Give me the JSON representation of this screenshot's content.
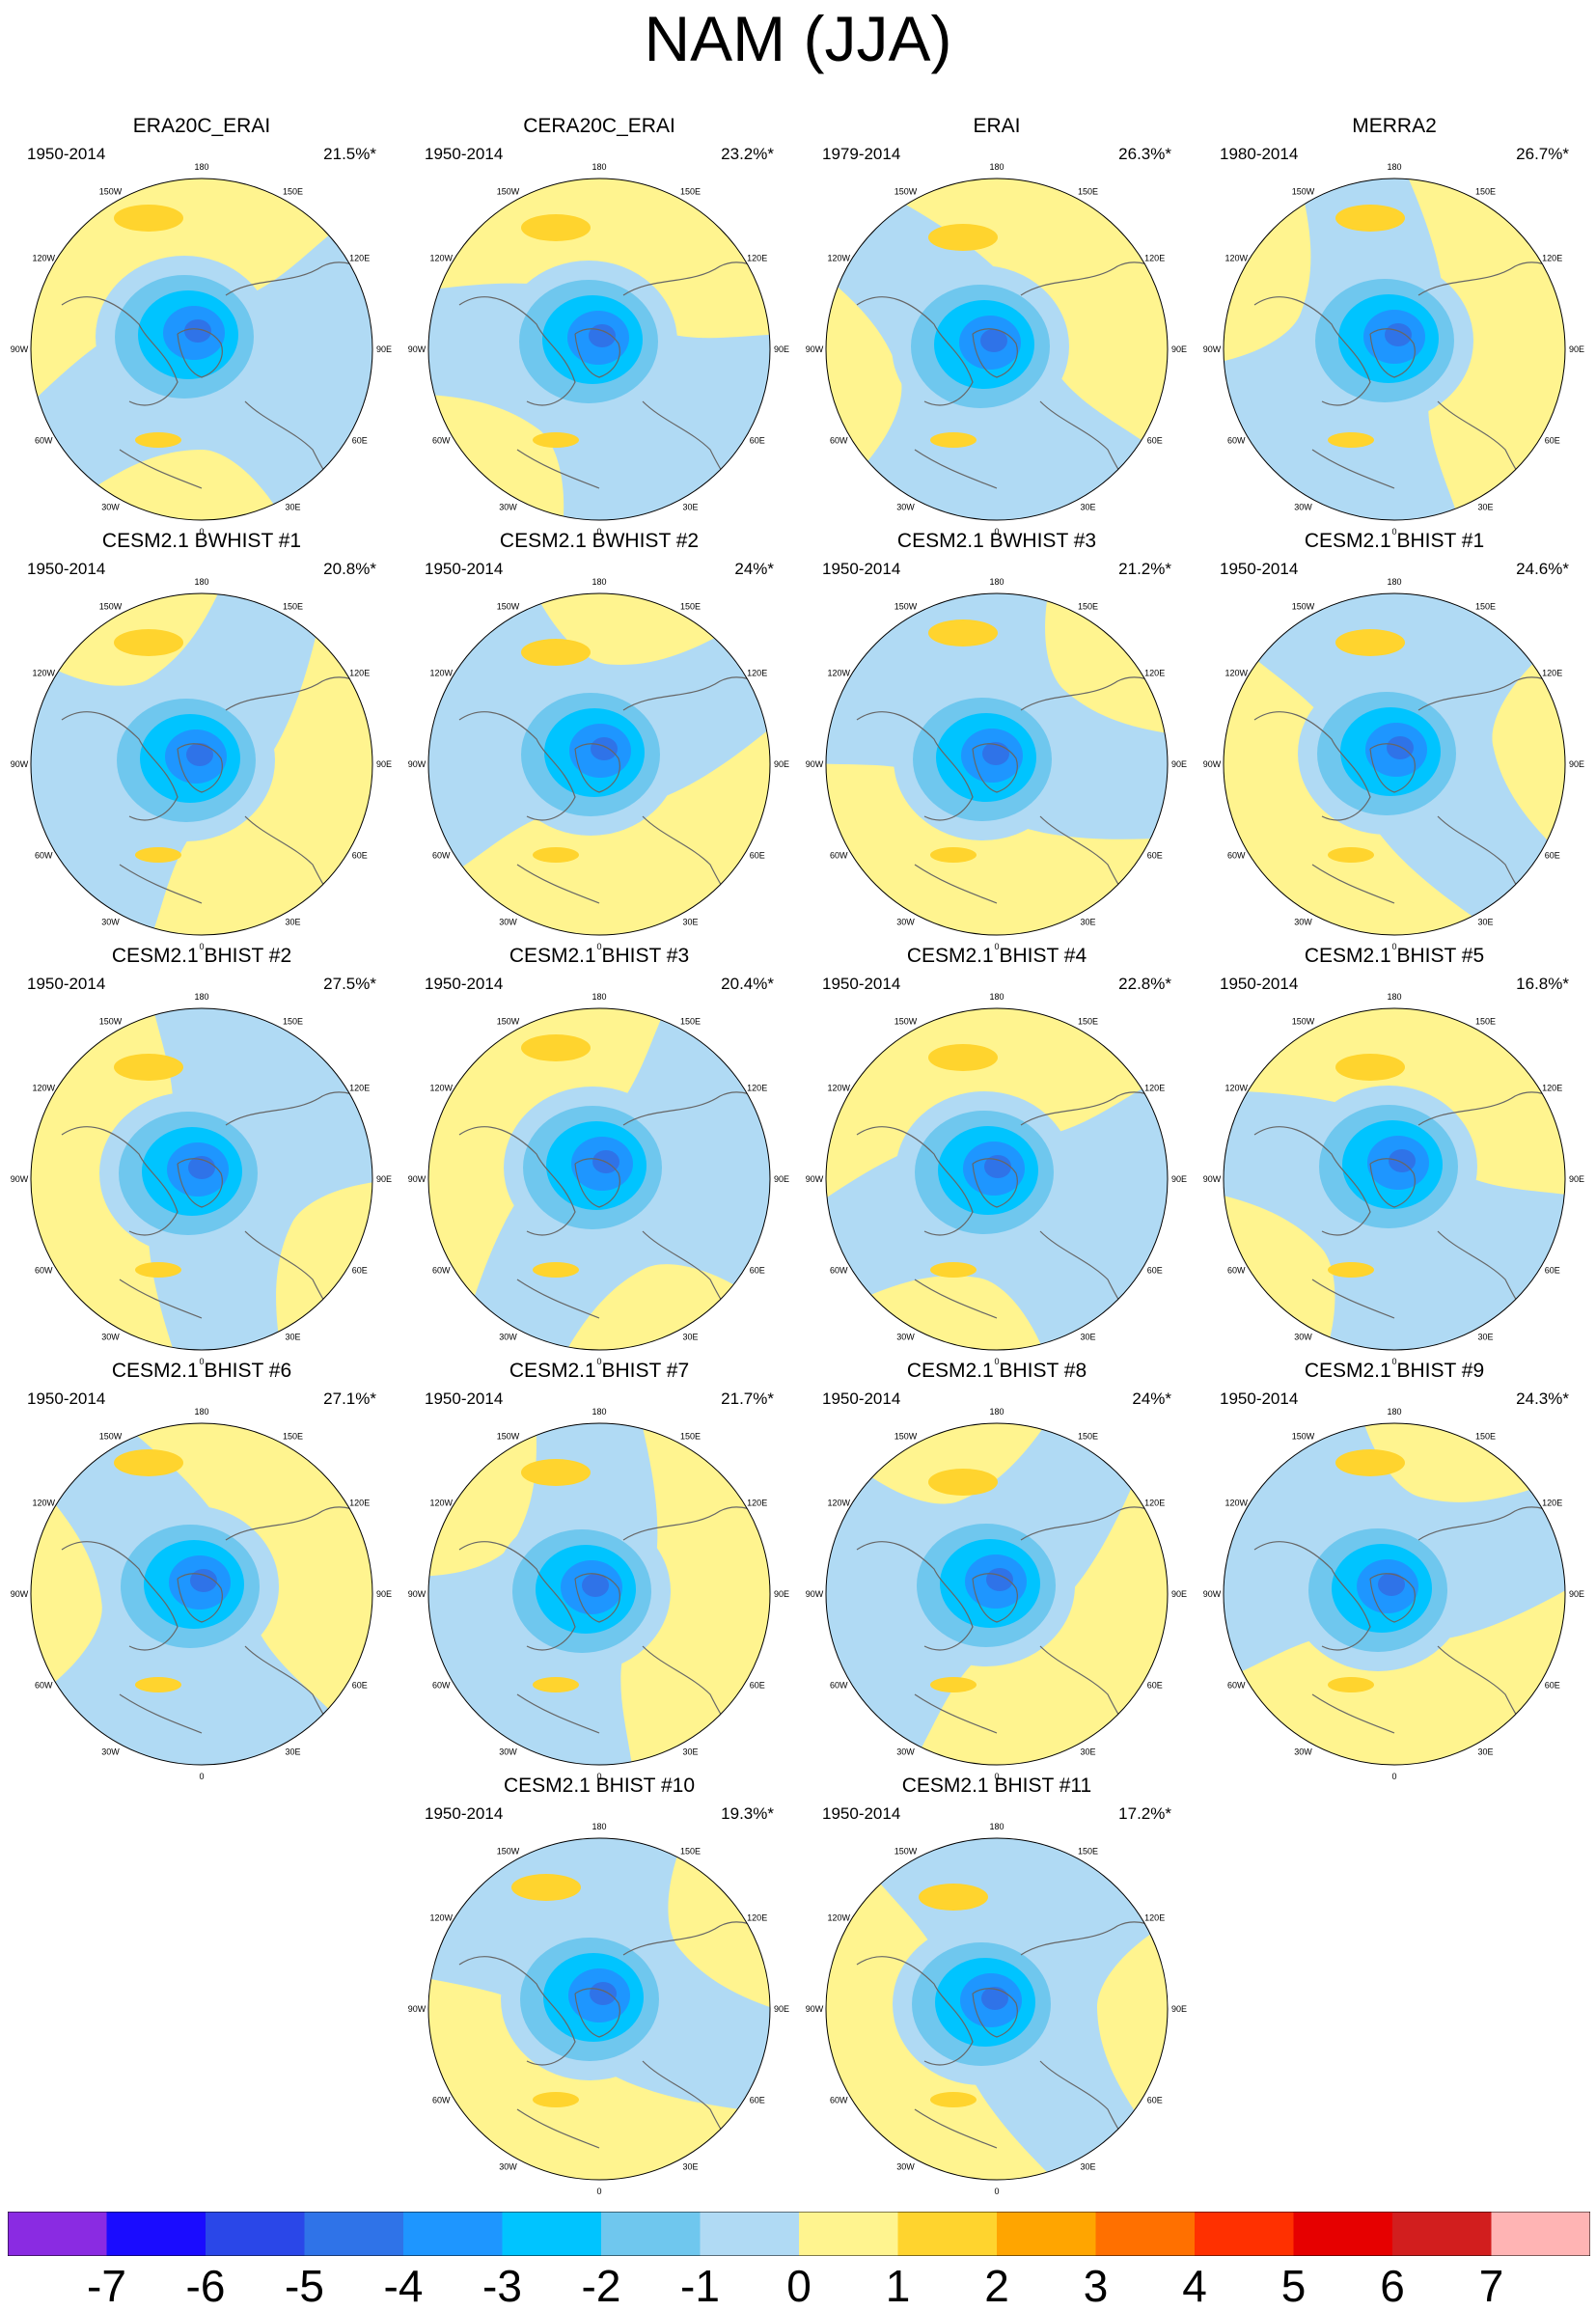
{
  "chart_data": {
    "type": "heatmap",
    "title": "NAM (JJA)",
    "projection": "north polar stereographic",
    "longitude_labels": [
      "180",
      "150E",
      "120E",
      "90E",
      "60E",
      "30E",
      "0",
      "30W",
      "60W",
      "90W",
      "120W",
      "150W"
    ],
    "colorbar": {
      "tick_labels": [
        "-7",
        "-6",
        "-5",
        "-4",
        "-3",
        "-2",
        "-1",
        "0",
        "1",
        "2",
        "3",
        "4",
        "5",
        "6",
        "7"
      ],
      "colors": [
        "#8a2be2",
        "#1a0cff",
        "#2a47e8",
        "#2f73e8",
        "#1e96ff",
        "#00c4ff",
        "#6fc7ee",
        "#b0daf4",
        "#fff48f",
        "#ffd42e",
        "#ffa500",
        "#ff7000",
        "#ff3000",
        "#e60000",
        "#d21e1e",
        "#ffb4b4"
      ]
    },
    "panels": [
      {
        "title": "ERA20C_ERAI",
        "period": "1950-2014",
        "variance_explained": "21.5%*"
      },
      {
        "title": "CERA20C_ERAI",
        "period": "1950-2014",
        "variance_explained": "23.2%*"
      },
      {
        "title": "ERAI",
        "period": "1979-2014",
        "variance_explained": "26.3%*"
      },
      {
        "title": "MERRA2",
        "period": "1980-2014",
        "variance_explained": "26.7%*"
      },
      {
        "title": "CESM2.1 BWHIST #1",
        "period": "1950-2014",
        "variance_explained": "20.8%*"
      },
      {
        "title": "CESM2.1 BWHIST #2",
        "period": "1950-2014",
        "variance_explained": "24%*"
      },
      {
        "title": "CESM2.1 BWHIST #3",
        "period": "1950-2014",
        "variance_explained": "21.2%*"
      },
      {
        "title": "CESM2.1 BHIST #1",
        "period": "1950-2014",
        "variance_explained": "24.6%*"
      },
      {
        "title": "CESM2.1 BHIST #2",
        "period": "1950-2014",
        "variance_explained": "27.5%*"
      },
      {
        "title": "CESM2.1 BHIST #3",
        "period": "1950-2014",
        "variance_explained": "20.4%*"
      },
      {
        "title": "CESM2.1 BHIST #4",
        "period": "1950-2014",
        "variance_explained": "22.8%*"
      },
      {
        "title": "CESM2.1 BHIST #5",
        "period": "1950-2014",
        "variance_explained": "16.8%*"
      },
      {
        "title": "CESM2.1 BHIST #6",
        "period": "1950-2014",
        "variance_explained": "27.1%*"
      },
      {
        "title": "CESM2.1 BHIST #7",
        "period": "1950-2014",
        "variance_explained": "21.7%*"
      },
      {
        "title": "CESM2.1 BHIST #8",
        "period": "1950-2014",
        "variance_explained": "24%*"
      },
      {
        "title": "CESM2.1 BHIST #9",
        "period": "1950-2014",
        "variance_explained": "24.3%*"
      },
      {
        "title": "CESM2.1 BHIST #10",
        "period": "1950-2014",
        "variance_explained": "19.3%*"
      },
      {
        "title": "CESM2.1 BHIST #11",
        "period": "1950-2014",
        "variance_explained": "17.2%*"
      }
    ]
  }
}
